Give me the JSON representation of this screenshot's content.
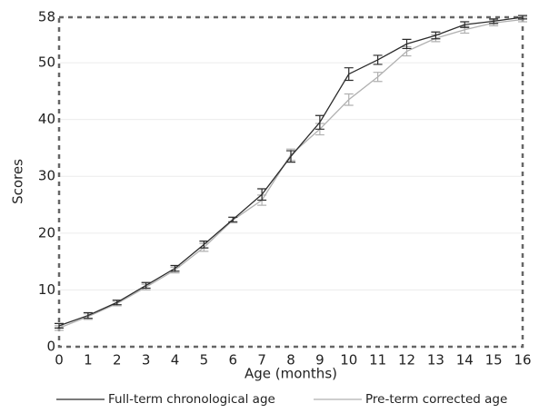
{
  "chart_data": {
    "type": "line",
    "y_label": "Scores",
    "x_label": "Age (months)",
    "x": [
      0,
      1,
      2,
      3,
      4,
      5,
      6,
      7,
      8,
      9,
      10,
      11,
      12,
      13,
      14,
      15,
      16
    ],
    "series": [
      {
        "name": "Full-term chronological age",
        "color": "#2b2b2b",
        "values": [
          3.7,
          5.5,
          7.8,
          10.8,
          13.8,
          18,
          22.4,
          26.8,
          33.5,
          39.5,
          48,
          50.5,
          53.3,
          54.8,
          56.7,
          57.3,
          58
        ],
        "errors": [
          0.4,
          0.5,
          0.4,
          0.5,
          0.5,
          0.6,
          0.4,
          1.0,
          1.0,
          1.2,
          1.1,
          0.8,
          0.8,
          0.6,
          0.5,
          0.4,
          0.3
        ]
      },
      {
        "name": "Pre-term corrected age",
        "color": "#b0b0b0",
        "values": [
          3.3,
          5.3,
          7.6,
          10.5,
          13.5,
          17.5,
          22.3,
          25.8,
          33.8,
          38.3,
          43.5,
          47.5,
          52,
          54.3,
          55.8,
          57,
          57.6
        ],
        "errors": [
          0.4,
          0.5,
          0.4,
          0.5,
          0.5,
          0.7,
          0.5,
          0.9,
          1.0,
          1.0,
          1.0,
          0.8,
          0.8,
          0.6,
          0.6,
          0.5,
          0.4
        ]
      }
    ],
    "xlim": [
      0,
      16
    ],
    "xticks": [
      0,
      1,
      2,
      3,
      4,
      5,
      6,
      7,
      8,
      9,
      10,
      11,
      12,
      13,
      14,
      15,
      16
    ],
    "ylim": [
      0,
      58
    ],
    "yticks": [
      0,
      10,
      20,
      30,
      40,
      50,
      58
    ],
    "grid": true
  }
}
